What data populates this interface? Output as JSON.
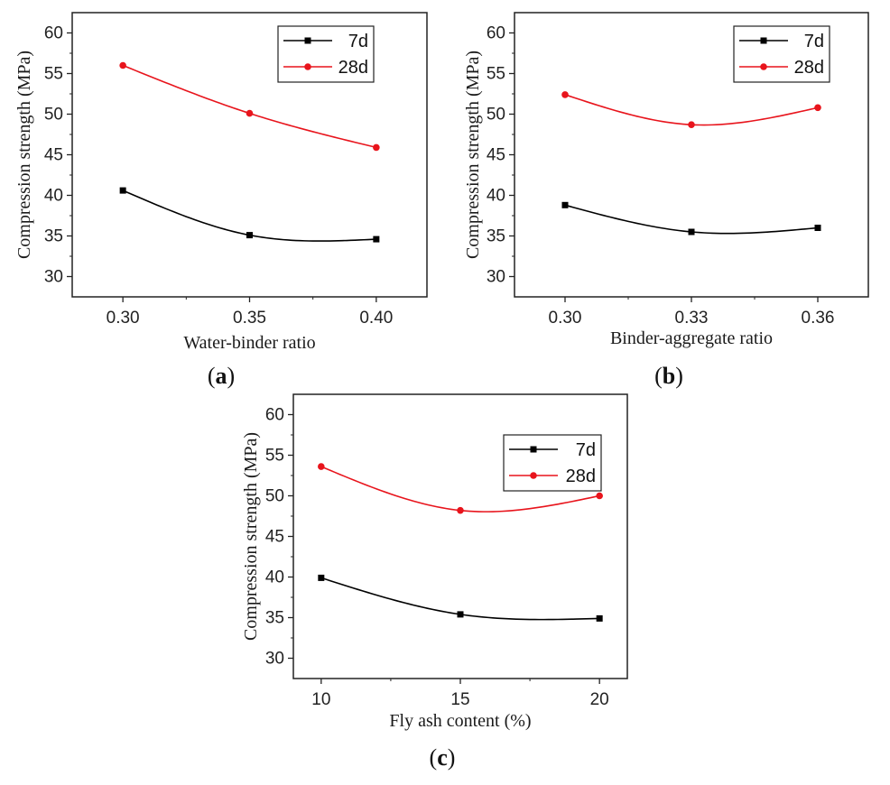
{
  "chart_data": [
    {
      "panel": "a",
      "type": "line",
      "xlabel": "Water-binder ratio",
      "ylabel": "Compression strength (MPa)",
      "x": [
        0.3,
        0.35,
        0.4
      ],
      "x_tick_labels": [
        "0.30",
        "0.35",
        "0.40"
      ],
      "xlim": [
        0.28,
        0.42
      ],
      "ylim": [
        27.5,
        62.5
      ],
      "y_ticks": [
        30,
        35,
        40,
        45,
        50,
        55,
        60
      ],
      "legend": [
        "7d",
        "28d"
      ],
      "series": [
        {
          "name": "7d",
          "color": "#000000",
          "marker": "square",
          "values": [
            40.6,
            35.1,
            34.6
          ]
        },
        {
          "name": "28d",
          "color": "#e8141c",
          "marker": "circle",
          "values": [
            56.0,
            50.1,
            45.9
          ]
        }
      ],
      "caption_prefix": "(",
      "caption_letter": "a",
      "caption_suffix": ")"
    },
    {
      "panel": "b",
      "type": "line",
      "xlabel": "Binder-aggregate ratio",
      "ylabel": "Compression strength (MPa)",
      "x": [
        0.3,
        0.33,
        0.36
      ],
      "x_tick_labels": [
        "0.30",
        "0.33",
        "0.36"
      ],
      "xlim": [
        0.288,
        0.372
      ],
      "ylim": [
        27.5,
        62.5
      ],
      "y_ticks": [
        30,
        35,
        40,
        45,
        50,
        55,
        60
      ],
      "legend": [
        "7d",
        "28d"
      ],
      "series": [
        {
          "name": "7d",
          "color": "#000000",
          "marker": "square",
          "values": [
            38.8,
            35.5,
            36.0
          ]
        },
        {
          "name": "28d",
          "color": "#e8141c",
          "marker": "circle",
          "values": [
            52.4,
            48.7,
            50.8
          ]
        }
      ],
      "caption_prefix": "(",
      "caption_letter": "b",
      "caption_suffix": ")"
    },
    {
      "panel": "c",
      "type": "line",
      "xlabel": "Fly ash content (%)",
      "ylabel": "Compression strength (MPa)",
      "x": [
        10,
        15,
        20
      ],
      "x_tick_labels": [
        "10",
        "15",
        "20"
      ],
      "xlim": [
        9,
        21
      ],
      "ylim": [
        27.5,
        62.5
      ],
      "y_ticks": [
        30,
        35,
        40,
        45,
        50,
        55,
        60
      ],
      "legend": [
        "7d",
        "28d"
      ],
      "series": [
        {
          "name": "7d",
          "color": "#000000",
          "marker": "square",
          "values": [
            39.9,
            35.4,
            34.9
          ]
        },
        {
          "name": "28d",
          "color": "#e8141c",
          "marker": "circle",
          "values": [
            53.6,
            48.2,
            50.0
          ]
        }
      ],
      "caption_prefix": "(",
      "caption_letter": "c",
      "caption_suffix": ")"
    }
  ]
}
